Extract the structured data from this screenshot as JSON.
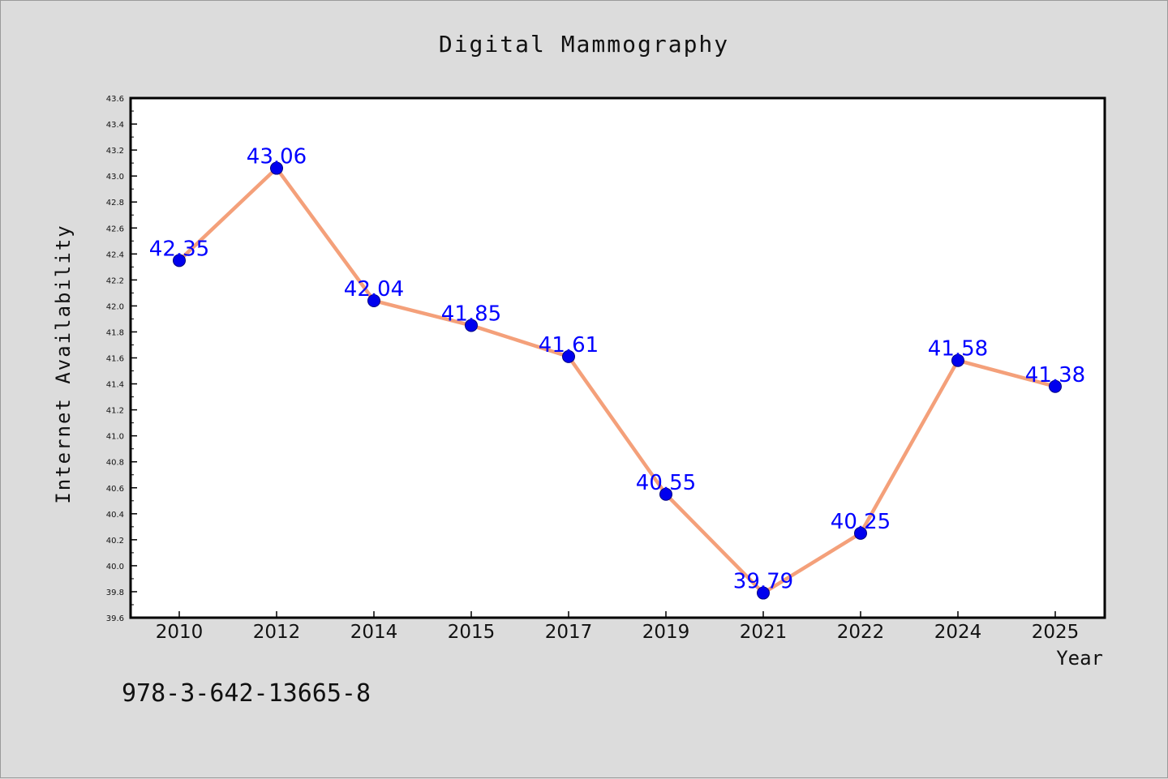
{
  "footer_text": "978-3-642-13665-8",
  "chart_data": {
    "type": "line",
    "title": "Digital Mammography",
    "xlabel": "Year",
    "ylabel": "Internet Availability",
    "categories": [
      "2010",
      "2012",
      "2014",
      "2015",
      "2017",
      "2019",
      "2021",
      "2022",
      "2024",
      "2025"
    ],
    "series": [
      {
        "values": [
          42.35,
          43.06,
          42.04,
          41.85,
          41.61,
          40.55,
          39.79,
          40.25,
          41.58,
          41.38
        ],
        "labels": [
          "42.35",
          "43.06",
          "42.04",
          "41.85",
          "41.61",
          "40.55",
          "39.79",
          "40.25",
          "41.58",
          "41.38"
        ],
        "line_color": "#f4a07a",
        "marker_color": "#0000ee",
        "label_color": "#0000ff"
      }
    ],
    "ylim": [
      39.6,
      43.6
    ],
    "ytick_step": 0.2,
    "grid": false,
    "legend": "none"
  }
}
